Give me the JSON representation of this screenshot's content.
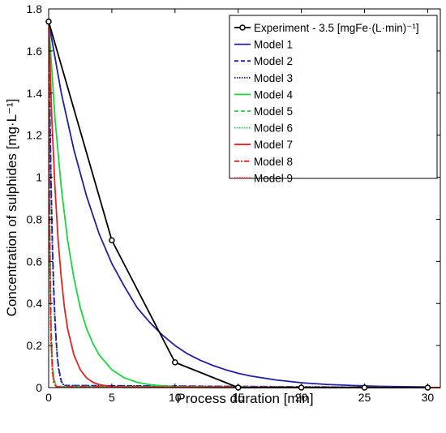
{
  "chart_data": {
    "type": "line",
    "title": "",
    "xlabel": "Process duration [min]",
    "ylabel": "Concentration of sulphides [mg·L⁻¹]",
    "xlim": [
      0,
      31
    ],
    "ylim": [
      0,
      1.8
    ],
    "xticks": [
      "0",
      "5",
      "10",
      "15",
      "20",
      "25",
      "30"
    ],
    "yticks": [
      "0",
      "0.2",
      "0.4",
      "0.6",
      "0.8",
      "1",
      "1.2",
      "1.4",
      "1.6",
      "1.8"
    ],
    "grid": false,
    "legend_position": "top-right",
    "legend_title": "",
    "series": [
      {
        "name": "Experiment - 3.5 [mgFe·(L·min)⁻¹]",
        "color": "#000000",
        "line": "solid",
        "marker": "circle",
        "x": [
          0,
          5,
          10,
          15,
          20,
          25,
          30
        ],
        "y": [
          1.74,
          0.7,
          0.12,
          0.0,
          0.0,
          0.0,
          0.0
        ]
      },
      {
        "name": "Model 1",
        "color": "#1f1fa8",
        "line": "solid",
        "x": [
          0,
          1,
          2,
          3,
          4,
          5,
          6,
          7,
          8,
          9,
          10,
          11,
          12,
          13,
          14,
          15,
          16,
          18,
          20,
          22,
          24,
          26,
          28,
          30
        ],
        "y": [
          1.74,
          1.4,
          1.13,
          0.91,
          0.73,
          0.59,
          0.48,
          0.38,
          0.31,
          0.25,
          0.2,
          0.16,
          0.13,
          0.105,
          0.085,
          0.068,
          0.055,
          0.036,
          0.023,
          0.015,
          0.01,
          0.006,
          0.004,
          0.003
        ]
      },
      {
        "name": "Model 2",
        "color": "#1f1fa8",
        "line": "dashed",
        "x": [
          0,
          0.1,
          0.2,
          0.3,
          0.4,
          0.5,
          0.6,
          0.7,
          0.8,
          1.0,
          1.2,
          31
        ],
        "y": [
          1.74,
          1.3,
          0.95,
          0.68,
          0.48,
          0.33,
          0.22,
          0.14,
          0.09,
          0.03,
          0.01,
          0.0
        ]
      },
      {
        "name": "Model 3",
        "color": "#1f1fa8",
        "line": "dotted",
        "x": [
          0,
          0.1,
          0.2,
          0.3,
          0.4,
          0.5,
          0.6,
          0.7,
          0.8,
          1.0,
          1.2,
          31
        ],
        "y": [
          1.74,
          1.28,
          0.92,
          0.65,
          0.45,
          0.31,
          0.21,
          0.13,
          0.08,
          0.03,
          0.01,
          0.0
        ]
      },
      {
        "name": "Model 4",
        "color": "#19d83c",
        "line": "solid",
        "x": [
          0,
          0.5,
          1,
          1.5,
          2,
          2.5,
          3,
          3.5,
          4,
          5,
          6,
          7,
          8,
          9,
          10,
          12,
          14,
          31
        ],
        "y": [
          1.74,
          1.28,
          0.95,
          0.7,
          0.52,
          0.38,
          0.28,
          0.21,
          0.155,
          0.085,
          0.046,
          0.025,
          0.014,
          0.008,
          0.004,
          0.001,
          0.0,
          0.0
        ]
      },
      {
        "name": "Model 5",
        "color": "#19d83c",
        "line": "dashed",
        "x": [
          0,
          0.05,
          0.1,
          0.15,
          0.2,
          0.3,
          0.4,
          0.6,
          31
        ],
        "y": [
          1.74,
          1.1,
          0.7,
          0.44,
          0.28,
          0.11,
          0.045,
          0.005,
          0.0
        ]
      },
      {
        "name": "Model 6",
        "color": "#19d83c",
        "line": "dotted",
        "x": [
          0,
          0.05,
          0.1,
          0.15,
          0.2,
          0.3,
          0.4,
          0.6,
          31
        ],
        "y": [
          1.74,
          1.05,
          0.65,
          0.4,
          0.25,
          0.1,
          0.04,
          0.005,
          0.0
        ]
      },
      {
        "name": "Model 7",
        "color": "#e52121",
        "line": "solid",
        "x": [
          0,
          0.25,
          0.5,
          0.75,
          1,
          1.25,
          1.5,
          2,
          2.5,
          3,
          3.5,
          4,
          5,
          6,
          31
        ],
        "y": [
          1.74,
          1.28,
          0.95,
          0.7,
          0.52,
          0.38,
          0.28,
          0.155,
          0.085,
          0.046,
          0.025,
          0.014,
          0.004,
          0.001,
          0.0
        ]
      },
      {
        "name": "Model 8",
        "color": "#e52121",
        "line": "dashdot",
        "x": [
          0,
          0.05,
          0.1,
          0.15,
          0.2,
          0.3,
          0.4,
          0.6,
          31
        ],
        "y": [
          1.74,
          1.05,
          0.63,
          0.38,
          0.23,
          0.085,
          0.03,
          0.004,
          0.0
        ]
      },
      {
        "name": "Model 9",
        "color": "#e52121",
        "line": "dotted",
        "x": [
          0,
          0.05,
          0.1,
          0.15,
          0.2,
          0.3,
          0.4,
          0.6,
          31
        ],
        "y": [
          1.74,
          1.0,
          0.58,
          0.34,
          0.2,
          0.07,
          0.025,
          0.003,
          0.0
        ]
      }
    ]
  }
}
